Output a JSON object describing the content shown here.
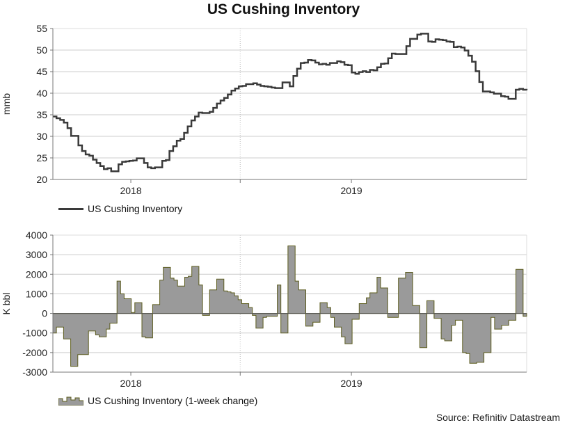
{
  "title": "US Cushing Inventory",
  "source": "Source: Refinitiv Datastream",
  "colors": {
    "line": "#3a3a3a",
    "area_fill": "#9a9a9a",
    "area_stroke": "#5c5c1e",
    "grid": "#cccccc"
  },
  "chart_data": [
    {
      "type": "line",
      "ylabel": "mmb",
      "ylim": [
        20,
        55
      ],
      "yticks": [
        20,
        25,
        30,
        35,
        40,
        45,
        50,
        55
      ],
      "xlim": [
        "2017-08-25",
        "2019-10-18"
      ],
      "year_ticks": [
        {
          "label": "2018",
          "date": "2018-01-01"
        },
        {
          "label": "2019",
          "date": "2019-01-01"
        }
      ],
      "year_boundary": "2018-07-01",
      "grid": true,
      "legend": "bottom-left",
      "series": [
        {
          "name": "US Cushing Inventory",
          "values": [
            34.6,
            34.2,
            33.8,
            33.2,
            31.9,
            30.1,
            30.1,
            27.9,
            26.6,
            25.8,
            25.5,
            24.6,
            23.8,
            23.1,
            22.4,
            22.6,
            21.9,
            21.9,
            23.5,
            24.1,
            24.2,
            24.3,
            24.4,
            24.9,
            24.9,
            23.8,
            22.8,
            22.6,
            22.8,
            22.8,
            24.3,
            24.5,
            26.6,
            27.7,
            29.0,
            29.4,
            30.8,
            32.3,
            33.7,
            34.6,
            35.5,
            35.4,
            35.4,
            35.7,
            36.6,
            37.6,
            38.3,
            38.9,
            39.7,
            40.6,
            41.1,
            41.6,
            41.7,
            42.1,
            42.1,
            42.3,
            42.0,
            41.7,
            41.6,
            41.5,
            41.3,
            41.2,
            41.2,
            42.5,
            42.5,
            41.6,
            44.0,
            45.7,
            47.0,
            47.1,
            47.7,
            47.6,
            47.1,
            46.7,
            46.8,
            46.6,
            47.0,
            47.0,
            47.4,
            47.2,
            46.6,
            46.5,
            44.8,
            44.5,
            44.9,
            45.1,
            44.9,
            45.4,
            45.3,
            46.0,
            46.8,
            46.9,
            48.1,
            49.2,
            49.1,
            49.1,
            49.1,
            50.9,
            52.6,
            52.6,
            53.6,
            53.8,
            53.8,
            52.0,
            51.9,
            52.5,
            52.4,
            52.3,
            52.0,
            51.9,
            50.7,
            50.8,
            50.6,
            49.9,
            48.7,
            47.3,
            45.1,
            42.6,
            40.4,
            40.4,
            40.2,
            39.9,
            39.9,
            39.3,
            39.2,
            38.7,
            38.7,
            40.8,
            41.0,
            40.8,
            40.7
          ]
        }
      ]
    },
    {
      "type": "area",
      "ylabel": "K bbl",
      "ylim": [
        -3000,
        4000
      ],
      "yticks": [
        -3000,
        -2000,
        -1000,
        0,
        1000,
        2000,
        3000,
        4000
      ],
      "xlim": [
        "2017-08-25",
        "2019-10-18"
      ],
      "year_ticks": [
        {
          "label": "2018",
          "date": "2018-01-01"
        },
        {
          "label": "2019",
          "date": "2019-01-01"
        }
      ],
      "year_boundary": "2018-07-01",
      "grid": true,
      "legend": "bottom-left",
      "series": [
        {
          "name": "US Cushing Inventory (1-week change)",
          "values": [
            -1000,
            -700,
            -700,
            -1300,
            -1300,
            -2700,
            -2700,
            -2100,
            -2100,
            -2100,
            -900,
            -900,
            -1100,
            -1200,
            -1200,
            -800,
            -500,
            -500,
            1650,
            1000,
            750,
            750,
            50,
            550,
            550,
            -1200,
            -1250,
            -1250,
            450,
            450,
            1700,
            2350,
            2350,
            1800,
            1700,
            1400,
            1400,
            1850,
            1900,
            2400,
            2400,
            1450,
            -100,
            -100,
            1200,
            1200,
            1750,
            1750,
            1150,
            1100,
            1050,
            900,
            700,
            500,
            500,
            300,
            -100,
            -750,
            -750,
            -200,
            -150,
            -150,
            -150,
            1450,
            -1000,
            -1000,
            3450,
            3450,
            1650,
            1200,
            1200,
            -650,
            -650,
            -450,
            -450,
            550,
            550,
            300,
            -200,
            -700,
            -700,
            -1200,
            -1550,
            -1550,
            -300,
            -300,
            500,
            500,
            800,
            1050,
            1050,
            1850,
            1300,
            1300,
            -200,
            -200,
            -200,
            1800,
            1800,
            2100,
            2100,
            400,
            400,
            -1750,
            -1750,
            650,
            650,
            -250,
            -250,
            -1300,
            -1400,
            -1400,
            -600,
            -350,
            -350,
            -2000,
            -2050,
            -2550,
            -2550,
            -2500,
            -2500,
            -2000,
            -2000,
            -200,
            -800,
            -800,
            -600,
            -600,
            -350,
            -350,
            2250,
            2250,
            -150,
            -150
          ]
        }
      ]
    }
  ]
}
